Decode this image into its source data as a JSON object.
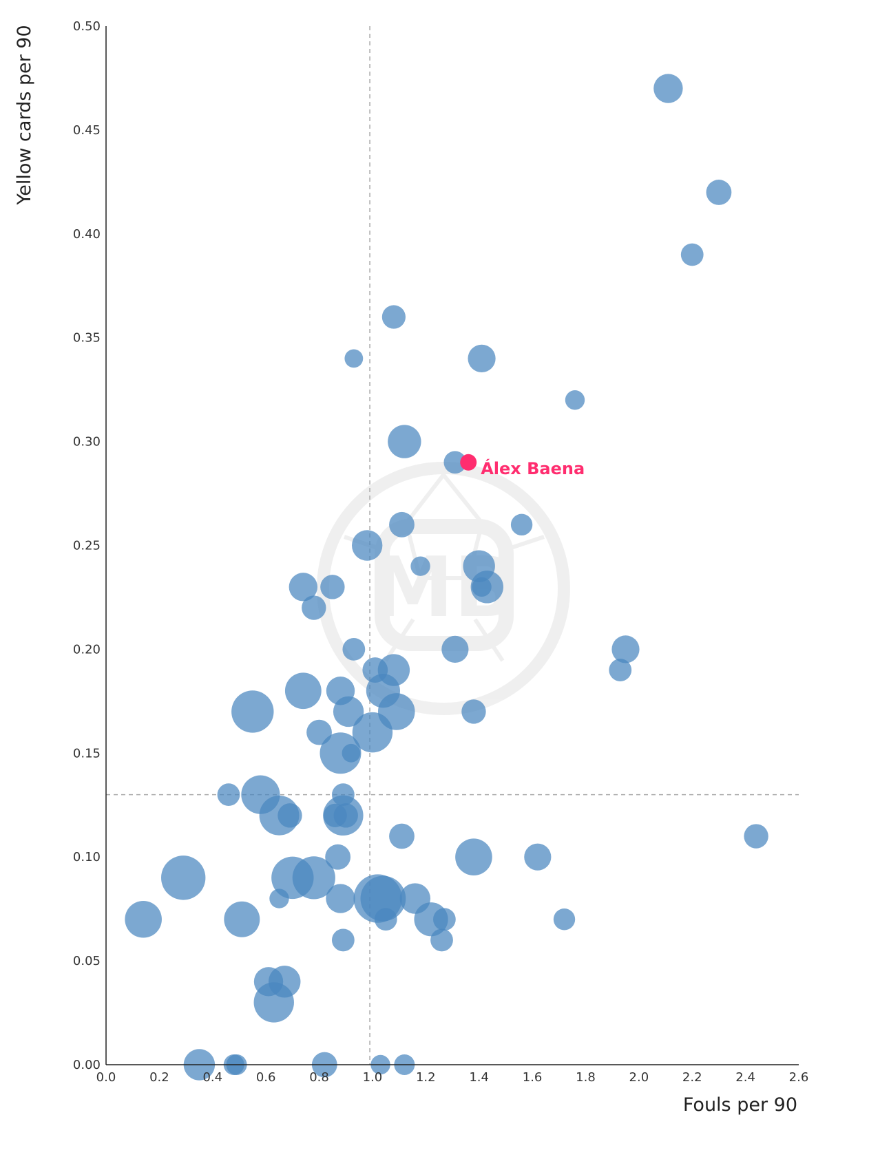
{
  "chart_data": {
    "type": "scatter",
    "title": "",
    "xlabel": "Fouls per 90",
    "ylabel": "Yellow cards per 90",
    "xlim": [
      0.0,
      2.6
    ],
    "ylim": [
      0.0,
      0.5
    ],
    "xticks": [
      "0.0",
      "0.2",
      "0.4",
      "0.6",
      "0.8",
      "1.0",
      "1.2",
      "1.4",
      "1.6",
      "1.8",
      "2.0",
      "2.2",
      "2.4",
      "2.6"
    ],
    "yticks": [
      "0.00",
      "0.05",
      "0.10",
      "0.15",
      "0.20",
      "0.25",
      "0.30",
      "0.35",
      "0.40",
      "0.45",
      "0.50"
    ],
    "reference_lines": {
      "x": 0.99,
      "y": 0.13
    },
    "bubble_color": "#4a86bf",
    "highlight_color": "#ff2d6f",
    "points": [
      {
        "x": 2.11,
        "y": 0.47,
        "s": 2
      },
      {
        "x": 2.3,
        "y": 0.42,
        "s": 1.5
      },
      {
        "x": 2.2,
        "y": 0.39,
        "s": 1.2
      },
      {
        "x": 1.08,
        "y": 0.36,
        "s": 1.3
      },
      {
        "x": 0.93,
        "y": 0.34,
        "s": 0.8
      },
      {
        "x": 1.41,
        "y": 0.34,
        "s": 1.8
      },
      {
        "x": 1.76,
        "y": 0.32,
        "s": 0.9
      },
      {
        "x": 1.12,
        "y": 0.3,
        "s": 2.6
      },
      {
        "x": 1.31,
        "y": 0.29,
        "s": 1.2
      },
      {
        "x": 1.11,
        "y": 0.26,
        "s": 1.5
      },
      {
        "x": 1.56,
        "y": 0.26,
        "s": 1.1
      },
      {
        "x": 0.98,
        "y": 0.25,
        "s": 2.2
      },
      {
        "x": 1.18,
        "y": 0.24,
        "s": 0.9
      },
      {
        "x": 1.4,
        "y": 0.24,
        "s": 2.4
      },
      {
        "x": 0.74,
        "y": 0.23,
        "s": 1.9
      },
      {
        "x": 0.85,
        "y": 0.23,
        "s": 1.4
      },
      {
        "x": 1.43,
        "y": 0.23,
        "s": 2.5
      },
      {
        "x": 1.41,
        "y": 0.23,
        "s": 0.9
      },
      {
        "x": 0.78,
        "y": 0.22,
        "s": 1.4
      },
      {
        "x": 0.93,
        "y": 0.2,
        "s": 1.2
      },
      {
        "x": 1.31,
        "y": 0.2,
        "s": 1.7
      },
      {
        "x": 1.95,
        "y": 0.2,
        "s": 1.8
      },
      {
        "x": 1.01,
        "y": 0.19,
        "s": 1.5
      },
      {
        "x": 1.08,
        "y": 0.19,
        "s": 2.4
      },
      {
        "x": 1.93,
        "y": 0.19,
        "s": 1.2
      },
      {
        "x": 0.74,
        "y": 0.18,
        "s": 3.1
      },
      {
        "x": 0.88,
        "y": 0.18,
        "s": 1.9
      },
      {
        "x": 1.04,
        "y": 0.18,
        "s": 2.7
      },
      {
        "x": 0.55,
        "y": 0.17,
        "s": 4.2
      },
      {
        "x": 0.91,
        "y": 0.17,
        "s": 2.2
      },
      {
        "x": 1.09,
        "y": 0.17,
        "s": 3.2
      },
      {
        "x": 1.38,
        "y": 0.17,
        "s": 1.4
      },
      {
        "x": 0.8,
        "y": 0.16,
        "s": 1.5
      },
      {
        "x": 1.0,
        "y": 0.16,
        "s": 3.8
      },
      {
        "x": 0.88,
        "y": 0.15,
        "s": 4.0
      },
      {
        "x": 0.92,
        "y": 0.15,
        "s": 0.8
      },
      {
        "x": 0.46,
        "y": 0.13,
        "s": 1.2
      },
      {
        "x": 0.58,
        "y": 0.13,
        "s": 3.5
      },
      {
        "x": 0.89,
        "y": 0.13,
        "s": 1.2
      },
      {
        "x": 0.65,
        "y": 0.12,
        "s": 3.7
      },
      {
        "x": 0.69,
        "y": 0.12,
        "s": 1.4
      },
      {
        "x": 0.86,
        "y": 0.12,
        "s": 1.3
      },
      {
        "x": 0.89,
        "y": 0.12,
        "s": 3.8
      },
      {
        "x": 0.9,
        "y": 0.12,
        "s": 1.4
      },
      {
        "x": 1.11,
        "y": 0.11,
        "s": 1.5
      },
      {
        "x": 2.44,
        "y": 0.11,
        "s": 1.4
      },
      {
        "x": 0.87,
        "y": 0.1,
        "s": 1.5
      },
      {
        "x": 1.38,
        "y": 0.1,
        "s": 3.2
      },
      {
        "x": 1.62,
        "y": 0.1,
        "s": 1.7
      },
      {
        "x": 0.29,
        "y": 0.09,
        "s": 4.6
      },
      {
        "x": 0.7,
        "y": 0.09,
        "s": 4.2
      },
      {
        "x": 0.78,
        "y": 0.09,
        "s": 4.3
      },
      {
        "x": 0.65,
        "y": 0.08,
        "s": 0.9
      },
      {
        "x": 0.88,
        "y": 0.08,
        "s": 2.0
      },
      {
        "x": 1.02,
        "y": 0.08,
        "s": 5.5
      },
      {
        "x": 1.04,
        "y": 0.08,
        "s": 4.8
      },
      {
        "x": 1.16,
        "y": 0.08,
        "s": 2.2
      },
      {
        "x": 0.14,
        "y": 0.07,
        "s": 3.2
      },
      {
        "x": 0.51,
        "y": 0.07,
        "s": 3.0
      },
      {
        "x": 1.05,
        "y": 0.07,
        "s": 1.2
      },
      {
        "x": 1.22,
        "y": 0.07,
        "s": 2.7
      },
      {
        "x": 1.27,
        "y": 0.07,
        "s": 1.2
      },
      {
        "x": 1.72,
        "y": 0.07,
        "s": 1.1
      },
      {
        "x": 0.89,
        "y": 0.06,
        "s": 1.2
      },
      {
        "x": 1.26,
        "y": 0.06,
        "s": 1.2
      },
      {
        "x": 0.61,
        "y": 0.04,
        "s": 2.0
      },
      {
        "x": 0.67,
        "y": 0.04,
        "s": 2.4
      },
      {
        "x": 0.63,
        "y": 0.03,
        "s": 3.8
      },
      {
        "x": 0.35,
        "y": 0.0,
        "s": 2.3
      },
      {
        "x": 0.48,
        "y": 0.0,
        "s": 1.0
      },
      {
        "x": 0.49,
        "y": 0.0,
        "s": 1.0
      },
      {
        "x": 0.82,
        "y": 0.0,
        "s": 1.5
      },
      {
        "x": 1.03,
        "y": 0.0,
        "s": 0.9
      },
      {
        "x": 1.12,
        "y": 0.0,
        "s": 1.0
      }
    ],
    "highlight": {
      "label": "Álex Baena",
      "x": 1.36,
      "y": 0.29
    }
  },
  "watermark": {
    "text": "MB"
  }
}
